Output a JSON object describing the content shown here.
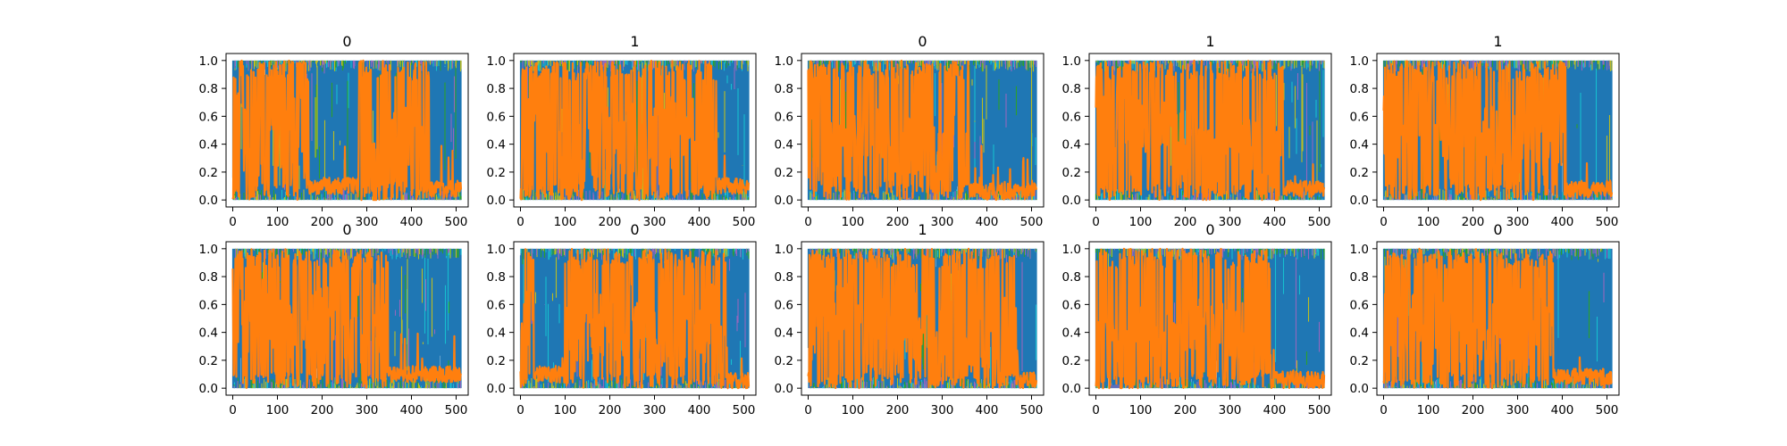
{
  "figure": {
    "background": "#ffffff"
  },
  "chart_data": {
    "type": "line",
    "layout": "grid",
    "rows": 2,
    "cols": 5,
    "xlim": [
      -15,
      527
    ],
    "ylim": [
      -0.05,
      1.05
    ],
    "xticks": [
      0,
      100,
      200,
      300,
      400,
      500
    ],
    "yticks": [
      0.0,
      0.2,
      0.4,
      0.6,
      0.8,
      1.0
    ],
    "xtick_labels": [
      "0",
      "100",
      "200",
      "300",
      "400",
      "500"
    ],
    "ytick_labels": [
      "0.0",
      "0.2",
      "0.4",
      "0.6",
      "0.8",
      "1.0"
    ],
    "n_points": 512,
    "colors": {
      "background_series": "#1f77b4",
      "minor_series": [
        "#17becf",
        "#2ca02c",
        "#bcbd22",
        "#9467bd"
      ],
      "highlight_series": "#ff7f0e"
    },
    "panels": [
      {
        "title": "0",
        "segments": [
          [
            0,
            35,
            0.5
          ],
          [
            35,
            60,
            0.4
          ],
          [
            60,
            170,
            0.45
          ],
          [
            170,
            205,
            0.1
          ],
          [
            205,
            280,
            0.1
          ],
          [
            280,
            330,
            0.15
          ],
          [
            330,
            400,
            0.4
          ],
          [
            400,
            440,
            0.25
          ],
          [
            440,
            512,
            0.08
          ]
        ]
      },
      {
        "title": "1",
        "segments": [
          [
            0,
            80,
            0.5
          ],
          [
            80,
            150,
            0.35
          ],
          [
            150,
            220,
            0.45
          ],
          [
            220,
            330,
            0.4
          ],
          [
            330,
            400,
            0.45
          ],
          [
            400,
            440,
            0.3
          ],
          [
            440,
            512,
            0.1
          ]
        ]
      },
      {
        "title": "0",
        "segments": [
          [
            0,
            100,
            0.3
          ],
          [
            100,
            230,
            0.4
          ],
          [
            230,
            310,
            0.35
          ],
          [
            310,
            360,
            0.35
          ],
          [
            360,
            512,
            0.06
          ]
        ]
      },
      {
        "title": "1",
        "segments": [
          [
            0,
            80,
            0.5
          ],
          [
            80,
            180,
            0.45
          ],
          [
            180,
            240,
            0.4
          ],
          [
            240,
            290,
            0.2
          ],
          [
            290,
            360,
            0.4
          ],
          [
            360,
            420,
            0.2
          ],
          [
            420,
            512,
            0.08
          ]
        ]
      },
      {
        "title": "1",
        "segments": [
          [
            0,
            100,
            0.5
          ],
          [
            100,
            200,
            0.45
          ],
          [
            200,
            300,
            0.4
          ],
          [
            300,
            410,
            0.45
          ],
          [
            410,
            512,
            0.08
          ]
        ]
      },
      {
        "title": "0",
        "segments": [
          [
            0,
            80,
            0.5
          ],
          [
            80,
            200,
            0.45
          ],
          [
            200,
            350,
            0.45
          ],
          [
            350,
            512,
            0.1
          ]
        ]
      },
      {
        "title": "0",
        "segments": [
          [
            0,
            30,
            0.4
          ],
          [
            30,
            100,
            0.1
          ],
          [
            100,
            200,
            0.45
          ],
          [
            200,
            300,
            0.45
          ],
          [
            300,
            460,
            0.45
          ],
          [
            460,
            512,
            0.05
          ]
        ]
      },
      {
        "title": "1",
        "segments": [
          [
            0,
            100,
            0.5
          ],
          [
            100,
            200,
            0.35
          ],
          [
            200,
            300,
            0.4
          ],
          [
            300,
            470,
            0.35
          ],
          [
            470,
            512,
            0.06
          ]
        ]
      },
      {
        "title": "0",
        "segments": [
          [
            0,
            100,
            0.2
          ],
          [
            100,
            200,
            0.3
          ],
          [
            200,
            300,
            0.4
          ],
          [
            300,
            390,
            0.4
          ],
          [
            390,
            512,
            0.06
          ]
        ]
      },
      {
        "title": "0",
        "segments": [
          [
            0,
            100,
            0.45
          ],
          [
            100,
            200,
            0.45
          ],
          [
            200,
            300,
            0.4
          ],
          [
            300,
            380,
            0.45
          ],
          [
            380,
            512,
            0.08
          ]
        ]
      }
    ]
  }
}
